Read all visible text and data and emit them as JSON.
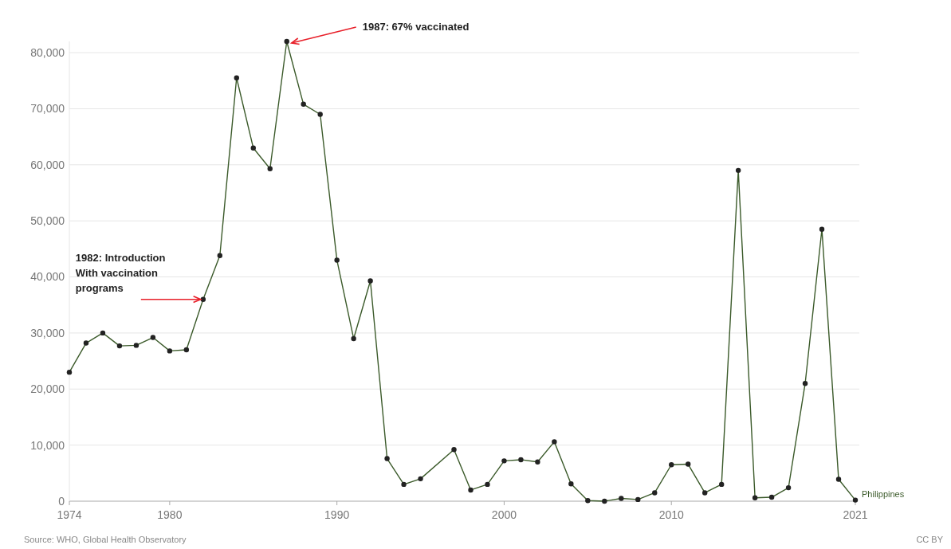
{
  "chart_data": {
    "type": "line",
    "x": [
      1974,
      1975,
      1976,
      1977,
      1978,
      1979,
      1980,
      1981,
      1982,
      1983,
      1984,
      1985,
      1986,
      1987,
      1988,
      1989,
      1990,
      1991,
      1992,
      1993,
      1994,
      1995,
      1997,
      1998,
      1999,
      2000,
      2001,
      2002,
      2003,
      2004,
      2005,
      2006,
      2007,
      2008,
      2009,
      2010,
      2011,
      2012,
      2013,
      2014,
      2015,
      2016,
      2017,
      2018,
      2019,
      2020,
      2021
    ],
    "series": [
      {
        "name": "Philippines",
        "color": "#3b5a2a",
        "values": [
          23000,
          28200,
          30000,
          27700,
          27800,
          29200,
          26800,
          27000,
          36000,
          43800,
          75500,
          63000,
          59300,
          82000,
          70800,
          69000,
          43000,
          29000,
          39300,
          7600,
          3000,
          4000,
          9200,
          2000,
          3000,
          7200,
          7400,
          7000,
          10600,
          3100,
          100,
          0,
          500,
          300,
          1500,
          6500,
          6600,
          1500,
          3000,
          59000,
          600,
          700,
          2400,
          21000,
          48500,
          3900,
          200
        ]
      }
    ],
    "xlim": [
      1974,
      2021
    ],
    "xticks": [
      1974,
      1980,
      1990,
      2000,
      2010,
      2021
    ],
    "ylim": [
      0,
      82000
    ],
    "yticks": [
      {
        "value": 0,
        "label": "0"
      },
      {
        "value": 10000,
        "label": "10,000"
      },
      {
        "value": 20000,
        "label": "20,000"
      },
      {
        "value": 30000,
        "label": "30,000"
      },
      {
        "value": 40000,
        "label": "40,000"
      },
      {
        "value": 50000,
        "label": "50,000"
      },
      {
        "value": 60000,
        "label": "60,000"
      },
      {
        "value": 70000,
        "label": "70,000"
      },
      {
        "value": 80000,
        "label": "80,000"
      }
    ],
    "grid": "y",
    "marker": "circle",
    "line_style": "solid",
    "annotations": [
      {
        "text": "1987: 67% vaccinated",
        "x": 1987,
        "y": 82000
      },
      {
        "text": "1982: Introduction\nWith vaccination\nprograms",
        "x": 1982,
        "y": 36000
      },
      "Source: WHO, Global Health Observatory",
      "CC BY"
    ]
  }
}
